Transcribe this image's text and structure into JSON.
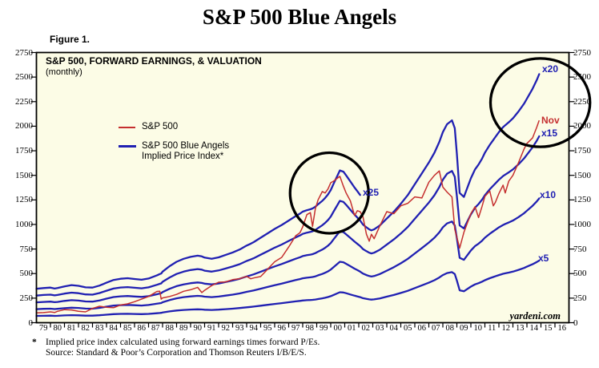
{
  "title": "S&P 500 Blue Angels",
  "figure_label": "Figure 1.",
  "chart_header": {
    "title": "S&P 500, FORWARD EARNINGS, & VALUATION",
    "subtitle": "(monthly)"
  },
  "legend": {
    "sp500": "S&P 500",
    "blue_angels_line1": "S&P 500 Blue Angels",
    "blue_angels_line2": "Implied Price Index*"
  },
  "line_labels": {
    "x20": "x20",
    "nov": "Nov",
    "x15": "x15",
    "x25": "x25",
    "x10": "x10",
    "x5": "x5"
  },
  "watermark": "yardeni.com",
  "footnotes": {
    "marker": "*",
    "line1": "Implied price index calculated using forward earnings times forward P/Es.",
    "line2": "Source: Standard & Poor’s Corporation and Thomson Reuters I/B/E/S."
  },
  "colors": {
    "sp500_red": "#C52F2F",
    "angels_blue": "#2020B2",
    "plot_background": "#FCFCE6",
    "frame_black": "#000000",
    "circle_black": "#000000"
  },
  "chart_data": {
    "type": "line",
    "title": "S&P 500, FORWARD EARNINGS, & VALUATION",
    "subtitle": "(monthly)",
    "grid": false,
    "legend_position": "top-left-inside",
    "ylim": [
      0,
      2750
    ],
    "y_ticks": [
      0,
      250,
      500,
      750,
      1000,
      1250,
      1500,
      1750,
      2000,
      2250,
      2500,
      2750
    ],
    "x_domain": [
      1979,
      2017
    ],
    "x_tick_labels": [
      "79",
      "80",
      "81",
      "82",
      "83",
      "84",
      "85",
      "86",
      "87",
      "88",
      "89",
      "90",
      "91",
      "92",
      "93",
      "94",
      "95",
      "96",
      "97",
      "98",
      "99",
      "00",
      "01",
      "02",
      "03",
      "04",
      "05",
      "06",
      "07",
      "08",
      "09",
      "10",
      "11",
      "12",
      "13",
      "14",
      "15",
      "16"
    ],
    "x": [
      1979.0,
      1979.5,
      1980.0,
      1980.3,
      1980.5,
      1981.0,
      1981.5,
      1982.0,
      1982.5,
      1983.0,
      1983.5,
      1984.0,
      1984.5,
      1985.0,
      1985.5,
      1986.0,
      1986.5,
      1987.0,
      1987.6,
      1987.8,
      1987.9,
      1988.0,
      1988.5,
      1989.0,
      1989.5,
      1990.0,
      1990.5,
      1990.8,
      1991.0,
      1991.5,
      1992.0,
      1992.5,
      1993.0,
      1993.5,
      1994.0,
      1994.3,
      1994.5,
      1995.0,
      1995.5,
      1996.0,
      1996.5,
      1997.0,
      1997.5,
      1997.8,
      1998.0,
      1998.3,
      1998.55,
      1998.7,
      1998.9,
      1999.1,
      1999.4,
      1999.6,
      1999.8,
      2000.0,
      2000.2,
      2000.65,
      2000.9,
      2001.1,
      2001.4,
      2001.7,
      2001.9,
      2002.1,
      2002.3,
      2002.55,
      2002.75,
      2002.9,
      2003.1,
      2003.5,
      2004.0,
      2004.5,
      2005.0,
      2005.5,
      2006.0,
      2006.5,
      2007.0,
      2007.4,
      2007.75,
      2008.0,
      2008.3,
      2008.65,
      2008.85,
      2009.0,
      2009.2,
      2009.5,
      2010.0,
      2010.3,
      2010.55,
      2010.8,
      2011.0,
      2011.35,
      2011.6,
      2011.75,
      2012.0,
      2012.3,
      2012.45,
      2012.7,
      2013.0,
      2013.4,
      2013.8,
      2014.0,
      2014.4,
      2014.7,
      2014.875
    ],
    "series": [
      {
        "name": "S&P 500",
        "color": "#C52F2F",
        "values": [
          100,
          103,
          110,
          104,
          116,
          133,
          130,
          117,
          110,
          145,
          167,
          157,
          153,
          180,
          192,
          214,
          240,
          267,
          318,
          320,
          240,
          252,
          267,
          288,
          320,
          335,
          360,
          307,
          330,
          378,
          412,
          415,
          438,
          448,
          472,
          447,
          455,
          470,
          545,
          620,
          665,
          770,
          885,
          915,
          975,
          1100,
          1120,
          980,
          1160,
          1250,
          1335,
          1320,
          1360,
          1425,
          1440,
          1490,
          1390,
          1320,
          1240,
          1090,
          1140,
          1130,
          1080,
          900,
          830,
          900,
          855,
          985,
          1130,
          1110,
          1190,
          1215,
          1280,
          1270,
          1430,
          1500,
          1545,
          1380,
          1330,
          1280,
          950,
          870,
          760,
          920,
          1110,
          1180,
          1070,
          1185,
          1285,
          1340,
          1190,
          1225,
          1315,
          1400,
          1320,
          1440,
          1500,
          1630,
          1770,
          1825,
          1880,
          1990,
          2060
        ]
      },
      {
        "name": "S&P 500 Blue Angels Implied Price Index",
        "color": "#2020B2",
        "formula": "forward earnings times P/E multiple",
        "multiples": [
          5,
          10,
          15,
          20,
          25
        ],
        "x25_end_year": 2002.1,
        "forward_earnings": [
          13.8,
          14.1,
          14.3,
          13.9,
          14.1,
          14.8,
          15.3,
          15.0,
          14.4,
          14.3,
          15.1,
          16.3,
          17.4,
          17.9,
          18.1,
          17.8,
          17.5,
          18.0,
          19.3,
          19.8,
          20.0,
          20.8,
          23.0,
          24.8,
          26.0,
          26.8,
          27.3,
          27.0,
          26.5,
          26.0,
          26.6,
          27.6,
          28.6,
          29.8,
          31.4,
          32.2,
          32.8,
          34.6,
          36.4,
          38.2,
          39.8,
          41.6,
          43.4,
          44.4,
          45.2,
          45.8,
          46.2,
          46.5,
          47.2,
          48.2,
          49.6,
          50.8,
          52.2,
          54.0,
          56.5,
          62.0,
          61.5,
          60.0,
          57.5,
          55.0,
          53.5,
          52.0,
          50.0,
          48.5,
          47.5,
          47.0,
          47.5,
          49.5,
          53.0,
          56.5,
          60.5,
          65.0,
          70.5,
          76.0,
          81.5,
          86.5,
          92.0,
          97.0,
          101.0,
          103.0,
          99.0,
          86.0,
          66.0,
          64.0,
          73.5,
          78.0,
          80.5,
          83.5,
          86.5,
          90.5,
          93.0,
          94.5,
          97.0,
          99.5,
          100.5,
          102.0,
          104.0,
          107.5,
          111.5,
          114.0,
          119.0,
          123.5,
          126.5
        ]
      }
    ],
    "last_point_label": "Nov",
    "annotations": [
      {
        "shape": "ellipse",
        "cx_year": 1999.9,
        "cy_value": 1320,
        "rx_years": 2.8,
        "ry_values": 410
      },
      {
        "shape": "ellipse",
        "cx_year": 2014.95,
        "cy_value": 2240,
        "rx_years": 3.55,
        "ry_values": 450
      }
    ]
  }
}
